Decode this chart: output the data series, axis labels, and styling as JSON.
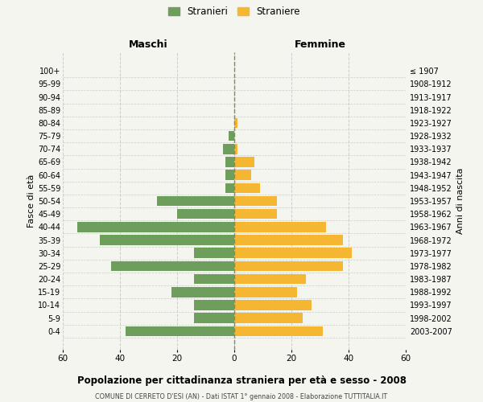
{
  "age_groups": [
    "0-4",
    "5-9",
    "10-14",
    "15-19",
    "20-24",
    "25-29",
    "30-34",
    "35-39",
    "40-44",
    "45-49",
    "50-54",
    "55-59",
    "60-64",
    "65-69",
    "70-74",
    "75-79",
    "80-84",
    "85-89",
    "90-94",
    "95-99",
    "100+"
  ],
  "birth_years": [
    "2003-2007",
    "1998-2002",
    "1993-1997",
    "1988-1992",
    "1983-1987",
    "1978-1982",
    "1973-1977",
    "1968-1972",
    "1963-1967",
    "1958-1962",
    "1953-1957",
    "1948-1952",
    "1943-1947",
    "1938-1942",
    "1933-1937",
    "1928-1932",
    "1923-1927",
    "1918-1922",
    "1913-1917",
    "1908-1912",
    "≤ 1907"
  ],
  "males": [
    38,
    14,
    14,
    22,
    14,
    43,
    14,
    47,
    55,
    20,
    27,
    3,
    3,
    3,
    4,
    2,
    0,
    0,
    0,
    0,
    0
  ],
  "females": [
    31,
    24,
    27,
    22,
    25,
    38,
    41,
    38,
    32,
    15,
    15,
    9,
    6,
    7,
    1,
    0,
    1,
    0,
    0,
    0,
    0
  ],
  "male_color": "#6d9e5c",
  "female_color": "#f5b731",
  "background_color": "#f5f5f0",
  "grid_color": "#cccccc",
  "title": "Popolazione per cittadinanza straniera per età e sesso - 2008",
  "subtitle": "COMUNE DI CERRETO D'ESI (AN) - Dati ISTAT 1° gennaio 2008 - Elaborazione TUTTITALIA.IT",
  "xlabel_left": "Maschi",
  "xlabel_right": "Femmine",
  "ylabel_left": "Fasce di età",
  "ylabel_right": "Anni di nascita",
  "legend_male": "Stranieri",
  "legend_female": "Straniere",
  "xlim": 60,
  "dpi": 100
}
